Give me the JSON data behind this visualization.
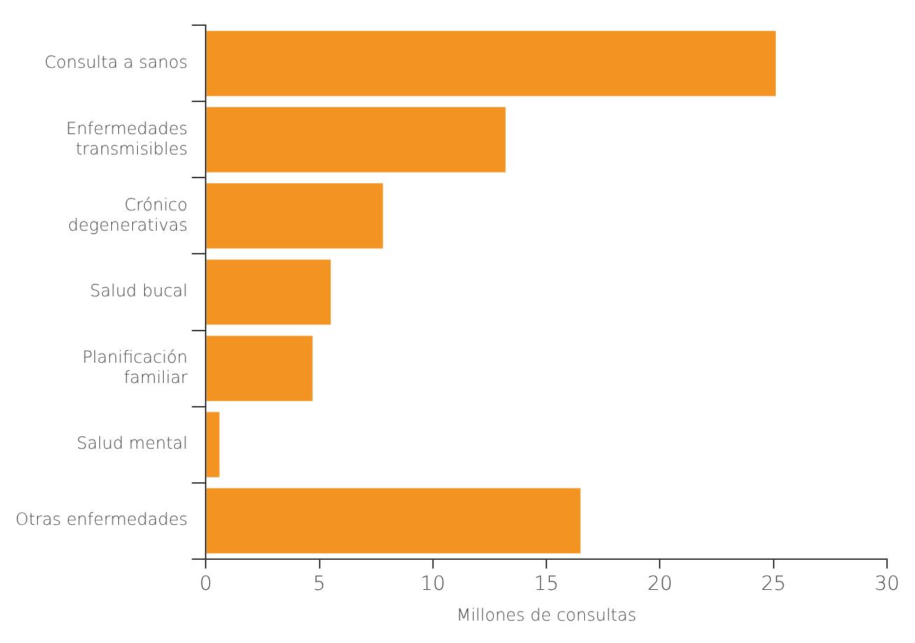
{
  "chart_data": {
    "type": "bar",
    "orientation": "horizontal",
    "xlabel": "Millones de consultas",
    "categories": [
      "Consulta a sanos",
      "Enfermedades transmisibles",
      "Crónico degenerativas",
      "Salud bucal",
      "Planificación familiar",
      "Salud mental",
      "Otras enfermedades"
    ],
    "values": [
      25.1,
      13.2,
      7.8,
      5.5,
      4.7,
      0.6,
      16.5
    ],
    "color": "#f39322",
    "xlim": [
      0,
      30
    ],
    "xticks": [
      0,
      5,
      10,
      15,
      20,
      25,
      30
    ],
    "grid": false,
    "legend": false
  }
}
